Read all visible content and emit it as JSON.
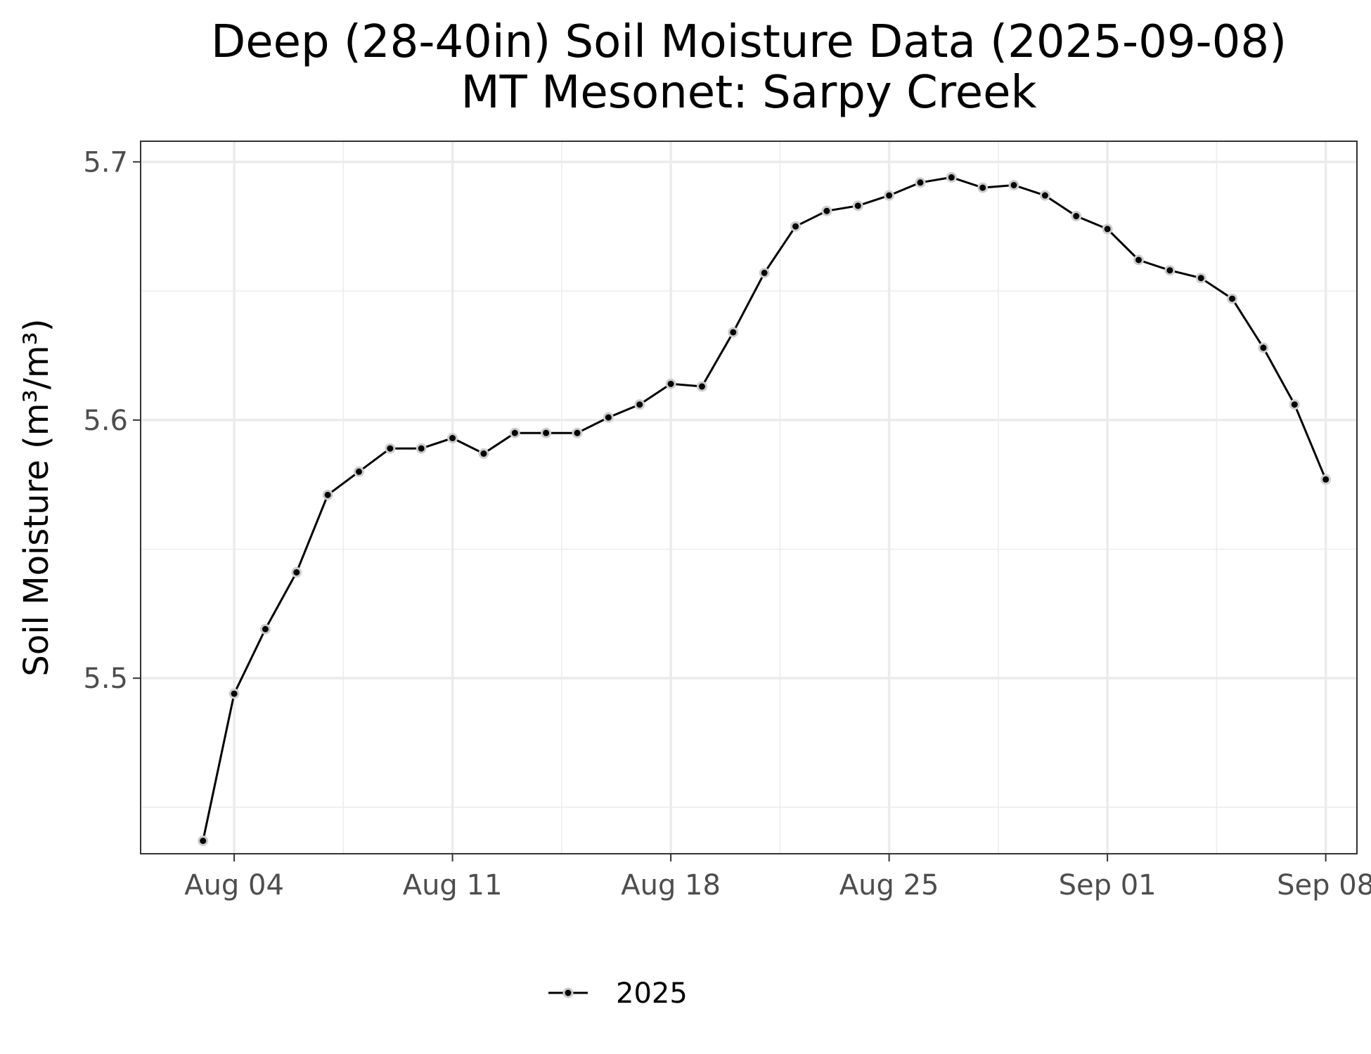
{
  "chart_data": {
    "type": "line",
    "title": "Deep (28-40in) Soil Moisture Data (2025-09-08)",
    "subtitle": "MT Mesonet: Sarpy Creek",
    "xlabel": "",
    "ylabel": "Soil Moisture (m³/m³)",
    "x_tick_labels": [
      "Aug 04",
      "Aug 11",
      "Aug 18",
      "Aug 25",
      "Sep 01",
      "Sep 08"
    ],
    "y_tick_labels": [
      "5.5",
      "5.6",
      "5.7"
    ],
    "y_ticks": [
      5.5,
      5.6,
      5.7
    ],
    "ylim": [
      5.432,
      5.708
    ],
    "xlim": [
      "2025-08-01",
      "2025-09-09"
    ],
    "grid": true,
    "legend_position": "bottom",
    "series": [
      {
        "name": "2025",
        "color": "#000000",
        "marker_outline": "#cccccc",
        "x": [
          "2025-08-03",
          "2025-08-04",
          "2025-08-05",
          "2025-08-06",
          "2025-08-07",
          "2025-08-08",
          "2025-08-09",
          "2025-08-10",
          "2025-08-11",
          "2025-08-12",
          "2025-08-13",
          "2025-08-14",
          "2025-08-15",
          "2025-08-16",
          "2025-08-17",
          "2025-08-18",
          "2025-08-19",
          "2025-08-20",
          "2025-08-21",
          "2025-08-22",
          "2025-08-23",
          "2025-08-24",
          "2025-08-25",
          "2025-08-26",
          "2025-08-27",
          "2025-08-28",
          "2025-08-29",
          "2025-08-30",
          "2025-08-31",
          "2025-09-01",
          "2025-09-02",
          "2025-09-03",
          "2025-09-04",
          "2025-09-05",
          "2025-09-06",
          "2025-09-07",
          "2025-09-08"
        ],
        "y": [
          5.437,
          5.494,
          5.519,
          5.541,
          5.571,
          5.58,
          5.589,
          5.589,
          5.593,
          5.587,
          5.595,
          5.595,
          5.595,
          5.601,
          5.606,
          5.614,
          5.613,
          5.634,
          5.657,
          5.675,
          5.681,
          5.683,
          5.687,
          5.692,
          5.694,
          5.69,
          5.691,
          5.687,
          5.679,
          5.674,
          5.662,
          5.658,
          5.655,
          5.647,
          5.628,
          5.606,
          5.577
        ]
      }
    ]
  }
}
